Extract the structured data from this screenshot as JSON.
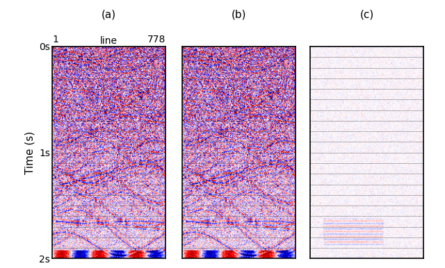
{
  "chart_data": [
    {
      "type": "image",
      "title": "(a)",
      "xlabel": "line",
      "ylabel": "Time (s)",
      "xlim": [
        1,
        778
      ],
      "ylim": [
        2,
        0
      ],
      "xticks": [
        1,
        778
      ],
      "yticks": [
        {
          "value": 0,
          "label": "0s"
        },
        {
          "value": 1,
          "label": "1s"
        },
        {
          "value": 2,
          "label": "2s"
        }
      ]
    },
    {
      "type": "image",
      "title": "(b)",
      "xlim": [
        1,
        778
      ],
      "ylim": [
        2,
        0
      ],
      "tick_labels": false
    },
    {
      "type": "image",
      "title": "(c)",
      "xlim": [
        1,
        778
      ],
      "ylim": [
        2,
        0
      ],
      "tick_labels": false
    }
  ]
}
